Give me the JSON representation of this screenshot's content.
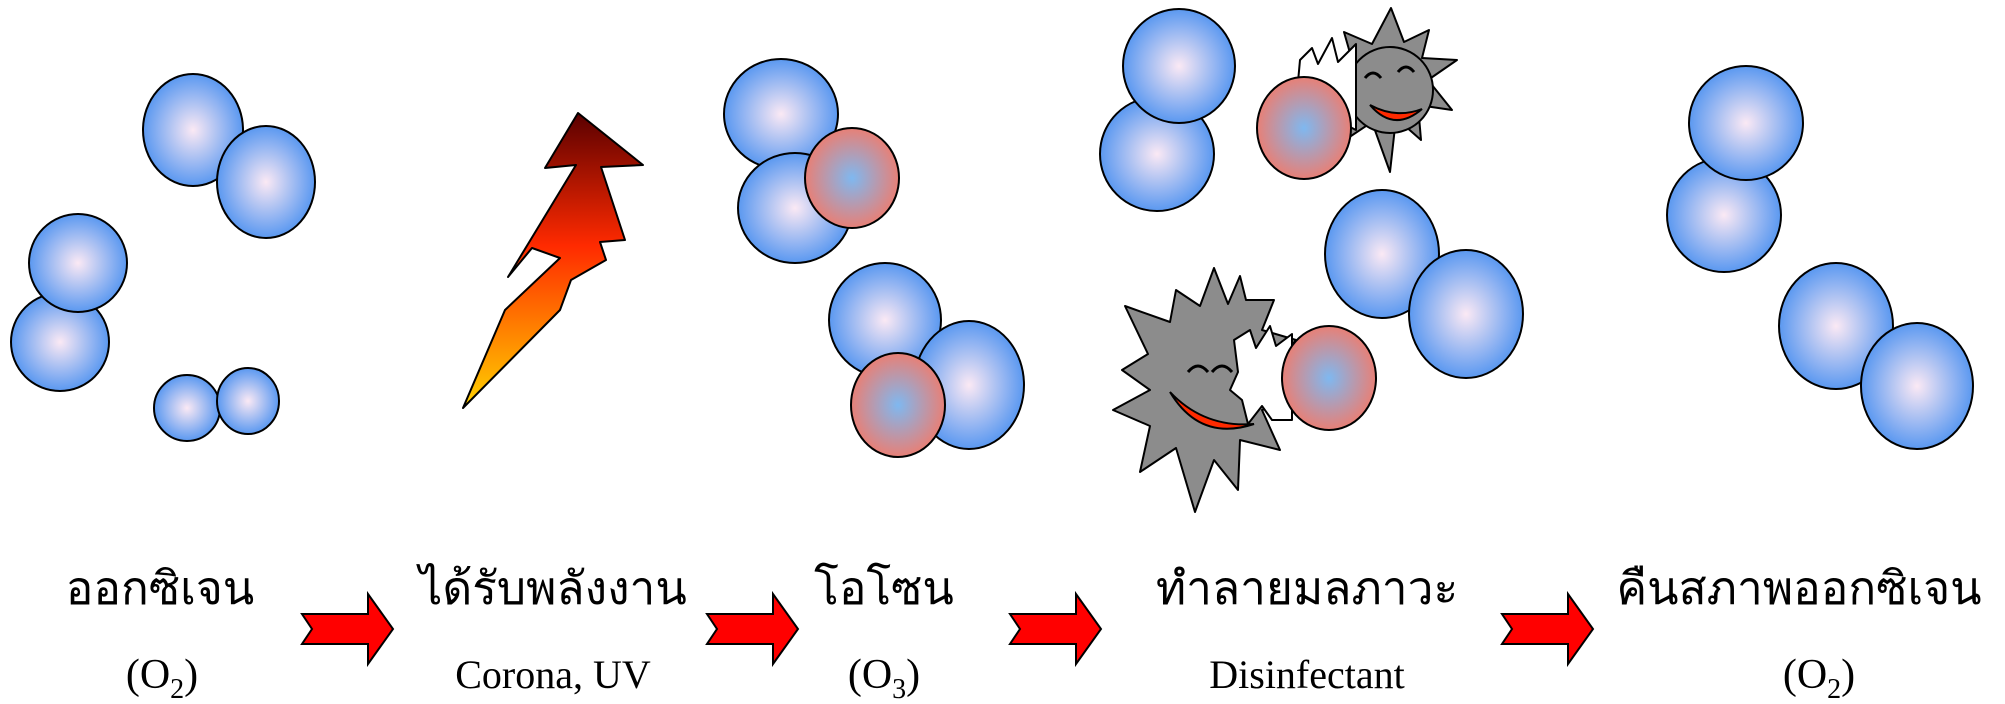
{
  "colors": {
    "oxygen_center": "#fbe9f4",
    "oxygen_edge": "#4a90f0",
    "ozone_center": "#7fb8f0",
    "ozone_edge": "#f27a6a",
    "arrow_fill": "#ff0000",
    "germ_fill": "#8c8c8c",
    "mouth_fill": "#ff2a00",
    "bolt_top": "#5a0000",
    "bolt_mid": "#ff2a00",
    "bolt_bottom": "#ffd200"
  },
  "stages": [
    {
      "title": "ออกซิเจน",
      "formula_open": "(O",
      "formula_sub": "2",
      "formula_close": ")"
    },
    {
      "title": "ได้รับพลังงาน",
      "caption": "Corona, UV"
    },
    {
      "title": "โอโซน",
      "formula_open": "(O",
      "formula_sub": "3",
      "formula_close": ")"
    },
    {
      "title": "ทำลายมลภาวะ",
      "caption": "Disinfectant"
    },
    {
      "title": "คืนสภาพออกซิเจน",
      "formula_open": "(O",
      "formula_sub": "2",
      "formula_close": ")"
    }
  ],
  "icons": [
    "oxygen-molecule",
    "lightning-bolt-icon",
    "ozone-molecule",
    "germ-icon",
    "right-arrow-icon"
  ]
}
